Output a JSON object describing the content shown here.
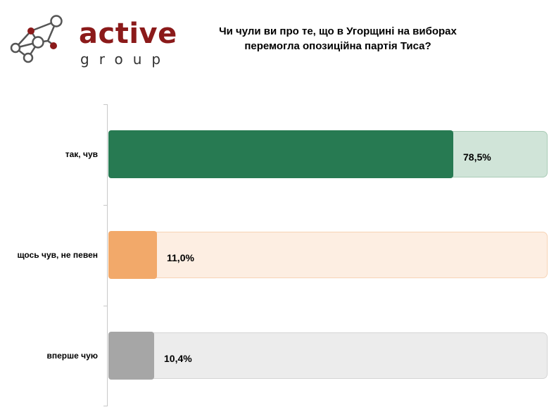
{
  "logo": {
    "word": "active",
    "sub": "group",
    "colors": {
      "accent": "#8b1a1a",
      "text": "#333333",
      "node": "#555555"
    }
  },
  "chart_title": "Чи чули ви про те, що в Угорщині на виборах перемогла опозиційна партія Тиса?",
  "chart_data": {
    "type": "bar",
    "orientation": "horizontal",
    "title": "Чи чули ви про те, що в Угорщині на виборах перемогла опозиційна партія Тиса?",
    "categories": [
      "так, чув",
      "щось чув, не певен",
      "вперше чую"
    ],
    "values": [
      78.5,
      11.0,
      10.4
    ],
    "value_labels": [
      "78,5%",
      "11,0%",
      "10,4%"
    ],
    "xlim": [
      0,
      100
    ],
    "unit": "%",
    "grid": false,
    "legend": "none",
    "colors": {
      "bars": [
        "#277a52",
        "#f2a96a",
        "#a6a6a6"
      ],
      "tracks": [
        "#d0e4d8",
        "#fdeee2",
        "#ececec"
      ],
      "track_borders": [
        "#a9cbb6",
        "#f7d3b5",
        "#d5d5d5"
      ]
    }
  }
}
